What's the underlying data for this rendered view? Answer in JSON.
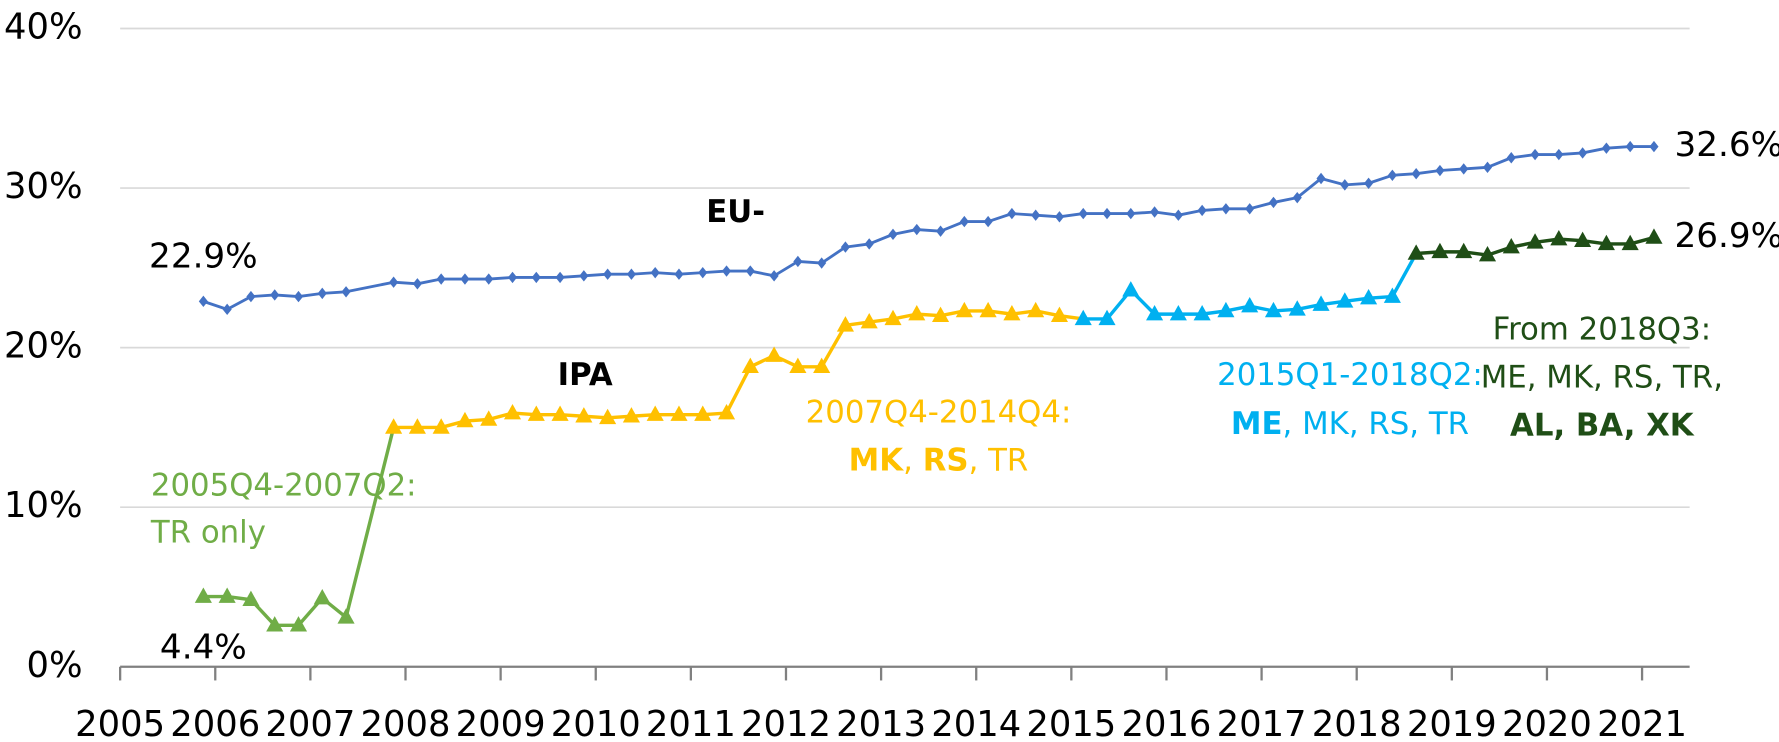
{
  "chart_data": {
    "type": "line",
    "xlim": [
      2005,
      2021.5
    ],
    "xticks": [
      2005,
      2006,
      2007,
      2008,
      2009,
      2010,
      2011,
      2012,
      2013,
      2014,
      2015,
      2016,
      2017,
      2018,
      2019,
      2020,
      2021
    ],
    "ylim": [
      0,
      40
    ],
    "yticks": [
      {
        "value": 0,
        "label": "0%"
      },
      {
        "value": 10,
        "label": "10%"
      },
      {
        "value": 20,
        "label": "20%"
      },
      {
        "value": 30,
        "label": "30%"
      },
      {
        "value": 40,
        "label": "40%"
      }
    ],
    "grid": true,
    "series": [
      {
        "color": "#4472c4",
        "marker": "diamond",
        "x": [
          2005.875,
          2006.125,
          2006.375,
          2006.625,
          2006.875,
          2007.125,
          2007.375,
          2007.875,
          2008.125,
          2008.375,
          2008.625,
          2008.875,
          2009.125,
          2009.375,
          2009.625,
          2009.875,
          2010.125,
          2010.375,
          2010.625,
          2010.875,
          2011.125,
          2011.375,
          2011.625,
          2011.875,
          2012.125,
          2012.375,
          2012.625,
          2012.875,
          2013.125,
          2013.375,
          2013.625,
          2013.875,
          2014.125,
          2014.375,
          2014.625,
          2014.875,
          2015.125,
          2015.375,
          2015.625,
          2015.875,
          2016.125,
          2016.375,
          2016.625,
          2016.875,
          2017.125,
          2017.375,
          2017.625,
          2017.875,
          2018.125,
          2018.375,
          2018.625,
          2018.875,
          2019.125,
          2019.375,
          2019.625,
          2019.875,
          2020.125,
          2020.375,
          2020.625,
          2020.875,
          2021.125
        ],
        "values": [
          22.9,
          22.4,
          23.2,
          23.3,
          23.2,
          23.4,
          23.5,
          24.1,
          24.0,
          24.3,
          24.3,
          24.3,
          24.4,
          24.4,
          24.4,
          24.5,
          24.6,
          24.6,
          24.7,
          24.6,
          24.7,
          24.8,
          24.8,
          24.5,
          25.4,
          25.3,
          26.3,
          26.5,
          27.1,
          27.4,
          27.3,
          27.9,
          27.9,
          28.4,
          28.3,
          28.2,
          28.4,
          28.4,
          28.4,
          28.5,
          28.3,
          28.6,
          28.7,
          28.7,
          29.1,
          29.4,
          30.6,
          30.2,
          30.3,
          30.8,
          30.9,
          31.1,
          31.2,
          31.3,
          31.9,
          32.1,
          32.1,
          32.2,
          32.5,
          32.6,
          32.6
        ],
        "value_labels": [
          "22.9%",
          null,
          null,
          null,
          null,
          null,
          null,
          null,
          null,
          null,
          null,
          null,
          null,
          null,
          null,
          null,
          null,
          null,
          null,
          null,
          null,
          null,
          null,
          null,
          null,
          null,
          null,
          null,
          null,
          null,
          null,
          null,
          null,
          null,
          null,
          null,
          null,
          null,
          null,
          null,
          null,
          null,
          null,
          null,
          null,
          null,
          null,
          null,
          null,
          null,
          null,
          null,
          null,
          null,
          null,
          null,
          null,
          null,
          null,
          null,
          "32.6%"
        ]
      },
      {
        "color": "#70ad47",
        "marker": "triangle",
        "x": [
          2005.875,
          2006.125,
          2006.375,
          2006.625,
          2006.875,
          2007.125,
          2007.375
        ],
        "values": [
          4.4,
          4.4,
          4.2,
          2.6,
          2.6,
          4.3,
          3.1
        ],
        "value_labels": [
          "4.4%",
          null,
          null,
          null,
          null,
          null,
          null
        ]
      },
      {
        "color": "#ffc000",
        "marker": "triangle",
        "x": [
          2007.875,
          2008.125,
          2008.375,
          2008.625,
          2008.875,
          2009.125,
          2009.375,
          2009.625,
          2009.875,
          2010.125,
          2010.375,
          2010.625,
          2010.875,
          2011.125,
          2011.375,
          2011.625,
          2011.875,
          2012.125,
          2012.375,
          2012.625,
          2012.875,
          2013.125,
          2013.375,
          2013.625,
          2013.875,
          2014.125,
          2014.375,
          2014.625,
          2014.875
        ],
        "values": [
          15.0,
          15.0,
          15.0,
          15.4,
          15.5,
          15.9,
          15.8,
          15.8,
          15.7,
          15.6,
          15.7,
          15.8,
          15.8,
          15.8,
          15.9,
          18.8,
          19.5,
          18.8,
          18.8,
          21.4,
          21.6,
          21.8,
          22.1,
          22.0,
          22.3,
          22.3,
          22.1,
          22.3,
          22.0
        ]
      },
      {
        "color": "#00b0f0",
        "marker": "triangle",
        "x": [
          2015.125,
          2015.375,
          2015.625,
          2015.875,
          2016.125,
          2016.375,
          2016.625,
          2016.875,
          2017.125,
          2017.375,
          2017.625,
          2017.875,
          2018.125,
          2018.375
        ],
        "values": [
          21.8,
          21.8,
          23.6,
          22.1,
          22.1,
          22.1,
          22.3,
          22.6,
          22.3,
          22.4,
          22.7,
          22.9,
          23.1,
          23.2
        ]
      },
      {
        "color": "#1f4e16",
        "marker": "triangle",
        "x": [
          2018.625,
          2018.875,
          2019.125,
          2019.375,
          2019.625,
          2019.875,
          2020.125,
          2020.375,
          2020.625,
          2020.875,
          2021.125
        ],
        "values": [
          25.9,
          26.0,
          26.0,
          25.8,
          26.3,
          26.6,
          26.8,
          26.7,
          26.5,
          26.5,
          26.9
        ],
        "value_labels": [
          null,
          null,
          null,
          null,
          null,
          null,
          null,
          null,
          null,
          null,
          "26.9%"
        ]
      }
    ],
    "annotations": [
      {
        "color": "#000000",
        "lines": [
          [
            {
              "text": "EU-",
              "bold": true
            }
          ]
        ]
      },
      {
        "color": "#000000",
        "lines": [
          [
            {
              "text": "IPA",
              "bold": true
            }
          ]
        ]
      },
      {
        "color": "#70ad47",
        "lines": [
          [
            {
              "text": "2005Q4-2007Q2:"
            }
          ],
          [
            {
              "text": "TR only"
            }
          ]
        ]
      },
      {
        "color": "#ffc000",
        "lines": [
          [
            {
              "text": "2007Q4-2014Q4:"
            }
          ],
          [
            {
              "text": "MK",
              "bold": true
            },
            {
              "text": ", "
            },
            {
              "text": "RS",
              "bold": true
            },
            {
              "text": ", TR"
            }
          ]
        ]
      },
      {
        "color": "#00b0f0",
        "lines": [
          [
            {
              "text": "2015Q1-2018Q2:"
            }
          ],
          [
            {
              "text": "ME",
              "bold": true
            },
            {
              "text": ", MK, RS, TR"
            }
          ]
        ]
      },
      {
        "color": "#1f4e16",
        "lines": [
          [
            {
              "text": "From 2018Q3:"
            }
          ],
          [
            {
              "text": "ME, MK, RS, TR,"
            }
          ],
          [
            {
              "text": "AL, BA, XK",
              "bold": true
            }
          ]
        ]
      }
    ]
  }
}
